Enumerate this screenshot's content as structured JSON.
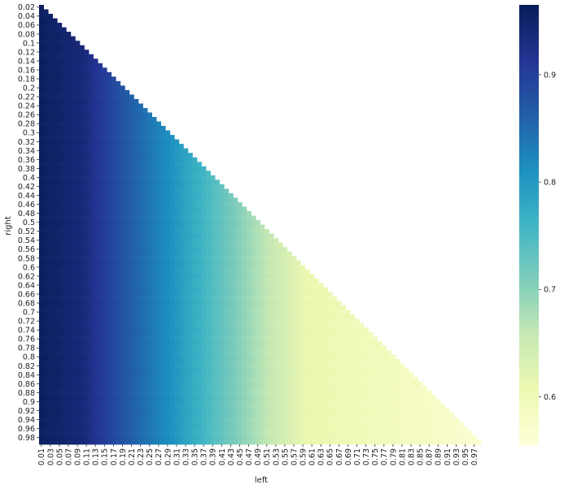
{
  "chart_data": {
    "type": "heatmap",
    "title": "",
    "xlabel": "left",
    "ylabel": "right",
    "x_range": [
      0.01,
      0.98
    ],
    "x_step": 0.01,
    "y_range": [
      0.02,
      0.99
    ],
    "y_step": 0.01,
    "mask": "upper triangle masked (only cells with left < right are drawn)",
    "value_model": "value decreases with left roughly linearly and is nearly independent of right",
    "value_by_left": [
      {
        "left": 0.01,
        "value": 0.96
      },
      {
        "left": 0.1,
        "value": 0.94
      },
      {
        "left": 0.2,
        "value": 0.87
      },
      {
        "left": 0.3,
        "value": 0.81
      },
      {
        "left": 0.4,
        "value": 0.74
      },
      {
        "left": 0.5,
        "value": 0.67
      },
      {
        "left": 0.6,
        "value": 0.61
      },
      {
        "left": 0.7,
        "value": 0.6
      },
      {
        "left": 0.8,
        "value": 0.59
      },
      {
        "left": 0.97,
        "value": 0.57
      }
    ],
    "x_tick_labels": [
      "0.01",
      "0.03",
      "0.05",
      "0.07",
      "0.09",
      "0.11",
      "0.13",
      "0.15",
      "0.17",
      "0.19",
      "0.21",
      "0.23",
      "0.25",
      "0.27",
      "0.29",
      "0.31",
      "0.33",
      "0.35",
      "0.37",
      "0.39",
      "0.41",
      "0.43",
      "0.45",
      "0.47",
      "0.49",
      "0.51",
      "0.53",
      "0.55",
      "0.57",
      "0.59",
      "0.61",
      "0.63",
      "0.65",
      "0.67",
      "0.69",
      "0.71",
      "0.73",
      "0.75",
      "0.77",
      "0.79",
      "0.81",
      "0.83",
      "0.85",
      "0.87",
      "0.89",
      "0.91",
      "0.93",
      "0.95",
      "0.97"
    ],
    "y_tick_labels": [
      "0.02",
      "0.04",
      "0.06",
      "0.08",
      "0.1",
      "0.12",
      "0.14",
      "0.16",
      "0.18",
      "0.2",
      "0.22",
      "0.24",
      "0.26",
      "0.28",
      "0.3",
      "0.32",
      "0.34",
      "0.36",
      "0.38",
      "0.4",
      "0.42",
      "0.44",
      "0.46",
      "0.48",
      "0.5",
      "0.52",
      "0.54",
      "0.56",
      "0.58",
      "0.6",
      "0.62",
      "0.64",
      "0.66",
      "0.68",
      "0.7",
      "0.72",
      "0.74",
      "0.76",
      "0.78",
      "0.8",
      "0.82",
      "0.84",
      "0.86",
      "0.88",
      "0.9",
      "0.92",
      "0.94",
      "0.96",
      "0.98"
    ],
    "colorbar": {
      "colormap": "YlGnBu",
      "vmin": 0.555,
      "vmax": 0.965,
      "ticks": [
        0.6,
        0.7,
        0.8,
        0.9
      ],
      "tick_labels": [
        "0.6",
        "0.7",
        "0.8",
        "0.9"
      ]
    },
    "colormap_stops": [
      "#ffffd9",
      "#edf8b1",
      "#c7e9b4",
      "#7fcdbb",
      "#41b6c4",
      "#1d91c0",
      "#225ea8",
      "#253494",
      "#081d58"
    ]
  }
}
